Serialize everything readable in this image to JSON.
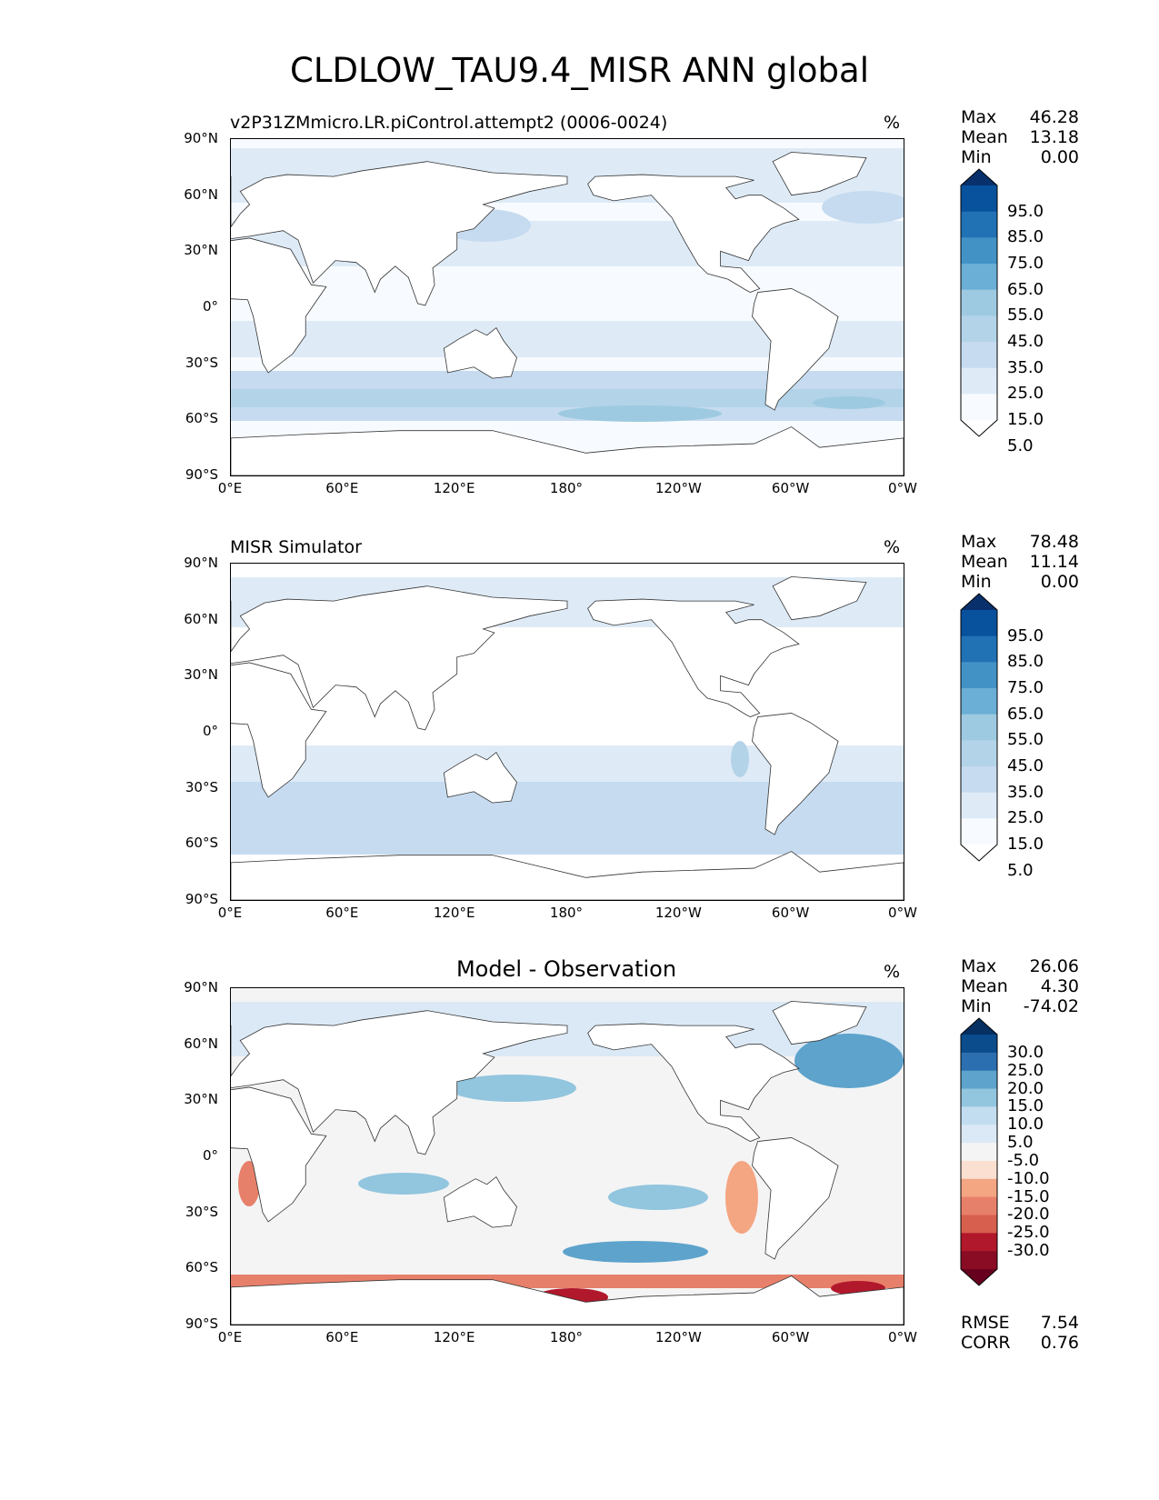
{
  "title": "CLDLOW_TAU9.4_MISR ANN global",
  "x_ticks": [
    "0°E",
    "60°E",
    "120°E",
    "180°",
    "120°W",
    "60°W",
    "0°W"
  ],
  "y_ticks": [
    "90°N",
    "60°N",
    "30°N",
    "0°",
    "30°S",
    "60°S",
    "90°S"
  ],
  "colors": {
    "seq": [
      "#f7fbff",
      "#deebf7",
      "#c6dbef",
      "#b3d3e8",
      "#9ecae1",
      "#6baed6",
      "#4292c6",
      "#2171b5",
      "#08519c",
      "#08306b"
    ],
    "div_blue": [
      "#f0f0f0",
      "#dbe9f6",
      "#c2ddf0",
      "#92c5de",
      "#5da3cc",
      "#2c6fb0",
      "#0b4c8c",
      "#053061"
    ],
    "div_red": [
      "#f0f0f0",
      "#fbe0d1",
      "#f4a582",
      "#e7806a",
      "#d6604d",
      "#b2182b",
      "#8a0c24",
      "#67001f"
    ],
    "land": "#ffffff",
    "neutral": "#f4f4f4"
  },
  "panels": [
    {
      "label": "v2P31ZMmicro.LR.piControl.attempt2 (0006-0024)",
      "units": "%",
      "stats": [
        [
          "Max",
          "46.28"
        ],
        [
          "Mean",
          "13.18"
        ],
        [
          "Min",
          "0.00"
        ]
      ],
      "colorbar_labels": [
        "95.0",
        "85.0",
        "75.0",
        "65.0",
        "55.0",
        "45.0",
        "35.0",
        "25.0",
        "15.0",
        "5.0"
      ]
    },
    {
      "label": "MISR Simulator",
      "units": "%",
      "stats": [
        [
          "Max",
          "78.48"
        ],
        [
          "Mean",
          "11.14"
        ],
        [
          "Min",
          "0.00"
        ]
      ],
      "colorbar_labels": [
        "95.0",
        "85.0",
        "75.0",
        "65.0",
        "55.0",
        "45.0",
        "35.0",
        "25.0",
        "15.0",
        "5.0"
      ]
    },
    {
      "label": "Model - Observation",
      "units": "%",
      "stats": [
        [
          "Max",
          "26.06"
        ],
        [
          "Mean",
          "4.30"
        ],
        [
          "Min",
          "-74.02"
        ]
      ],
      "colorbar_labels": [
        "30.0",
        "25.0",
        "20.0",
        "15.0",
        "10.0",
        "5.0",
        "-5.0",
        "-10.0",
        "-15.0",
        "-20.0",
        "-25.0",
        "-30.0"
      ],
      "extra_stats": [
        [
          "RMSE",
          "7.54"
        ],
        [
          "CORR",
          "0.76"
        ]
      ]
    }
  ]
}
